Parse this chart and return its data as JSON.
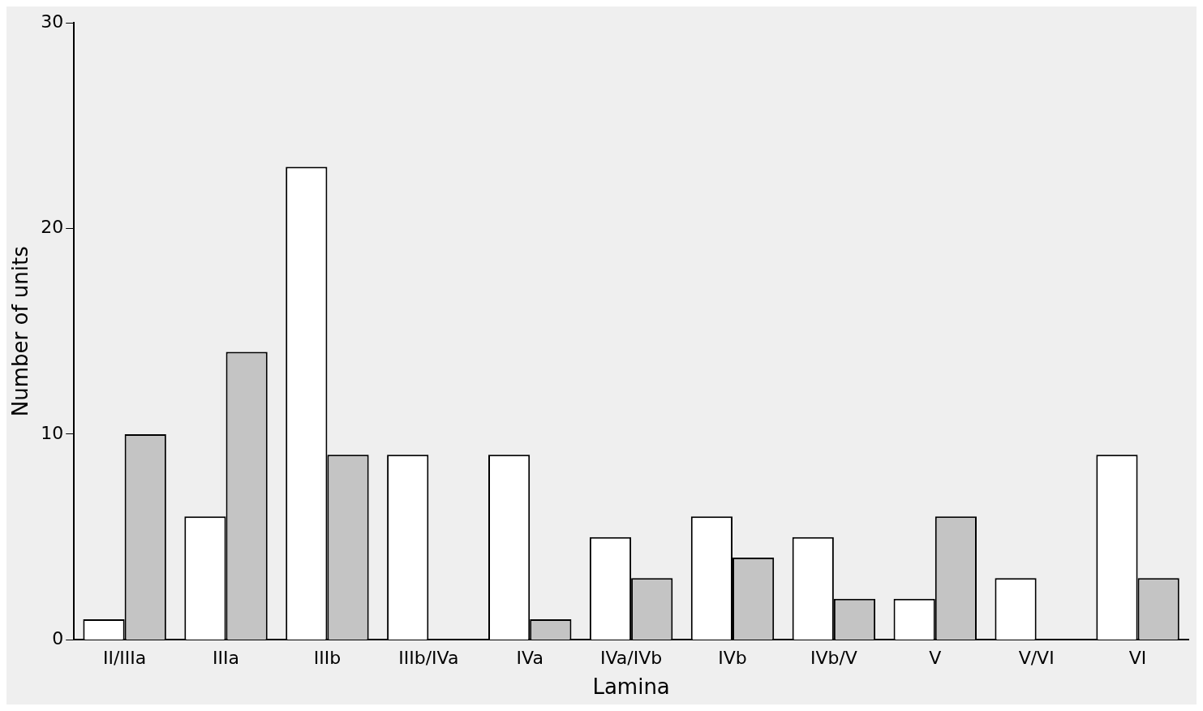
{
  "chart_data": {
    "type": "bar",
    "xlabel": "Lamina",
    "ylabel": "Number of units",
    "categories": [
      "II/IIIa",
      "IIIa",
      "IIIb",
      "IIIb/IVa",
      "IVa",
      "IVa/IVb",
      "IVb",
      "IVb/V",
      "V",
      "V/VI",
      "VI"
    ],
    "series": [
      {
        "color": "#ffffff",
        "values": [
          1,
          6,
          23,
          9,
          9,
          5,
          6,
          5,
          2,
          3,
          9
        ]
      },
      {
        "color": "#c4c4c4",
        "values": [
          10,
          14,
          9,
          0,
          1,
          3,
          4,
          2,
          6,
          0,
          3
        ]
      }
    ],
    "ylim": [
      0,
      30
    ],
    "yticks": [
      0,
      10,
      20,
      30
    ],
    "grid": false,
    "legend": false
  }
}
